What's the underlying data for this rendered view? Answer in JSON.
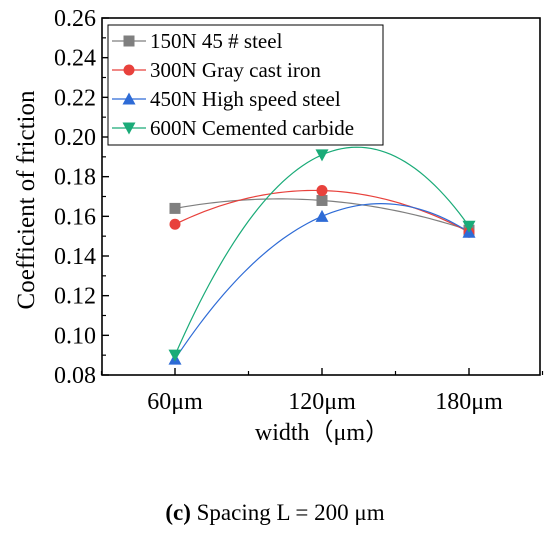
{
  "chart_data": {
    "type": "line",
    "ylabel": "Coefficient of friction",
    "xlabel": "width（μm）",
    "categories": [
      "60μm",
      "120μm",
      "180μm"
    ],
    "ylim": [
      0.08,
      0.26
    ],
    "yticks": [
      "0.08",
      "0.10",
      "0.12",
      "0.14",
      "0.16",
      "0.18",
      "0.20",
      "0.22",
      "0.24",
      "0.26"
    ],
    "grid": false,
    "legend_position": "top-left",
    "series": [
      {
        "name": "150N 45 # steel",
        "values": [
          0.164,
          0.168,
          0.153
        ],
        "color": "#7f7f7f",
        "marker": "square"
      },
      {
        "name": "300N Gray cast iron",
        "values": [
          0.156,
          0.173,
          0.152
        ],
        "color": "#e8413c",
        "marker": "circle"
      },
      {
        "name": "450N High speed steel",
        "values": [
          0.088,
          0.16,
          0.152
        ],
        "color": "#2e6bd6",
        "marker": "triangle-up"
      },
      {
        "name": "600N Cemented carbide",
        "values": [
          0.09,
          0.191,
          0.155
        ],
        "color": "#1aab78",
        "marker": "triangle-down"
      }
    ]
  },
  "caption": {
    "letter": "(c)",
    "text": "Spacing L = 200 μm"
  }
}
